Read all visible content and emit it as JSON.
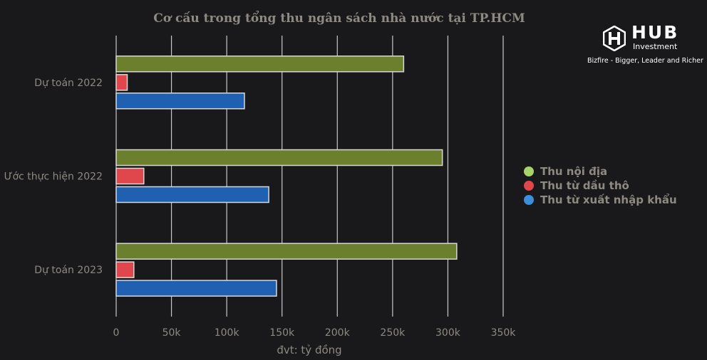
{
  "chart_data": {
    "type": "bar",
    "orientation": "horizontal",
    "title": "Cơ cấu trong tổng thu ngân sách nhà nước tại TP.HCM",
    "categories": [
      "Dự toán 2022",
      "Ước thực hiện 2022",
      "Dự toán 2023"
    ],
    "series": [
      {
        "name": "Thu nội địa",
        "color": "#6b7f2c",
        "legend_color": "#a6d46b",
        "values": [
          260000,
          295000,
          308000
        ]
      },
      {
        "name": "Thu từ dầu thô",
        "color": "#e0474c",
        "legend_color": "#e0474c",
        "values": [
          10000,
          25000,
          16000
        ]
      },
      {
        "name": "Thu từ xuất nhập khẩu",
        "color": "#2060b0",
        "legend_color": "#3d8edb",
        "values": [
          116000,
          138000,
          145000
        ]
      }
    ],
    "xlim": [
      0,
      350000
    ],
    "xticks": [
      "0",
      "50k",
      "100k",
      "150k",
      "200k",
      "250k",
      "300k",
      "350k"
    ],
    "xlabel": "đvt: tỷ đồng",
    "grid": true,
    "legend_position": "right"
  },
  "branding": {
    "name": "HUB",
    "subtitle": "Investment",
    "tagline": "Bizfire - Bigger, Leader and Richer"
  }
}
